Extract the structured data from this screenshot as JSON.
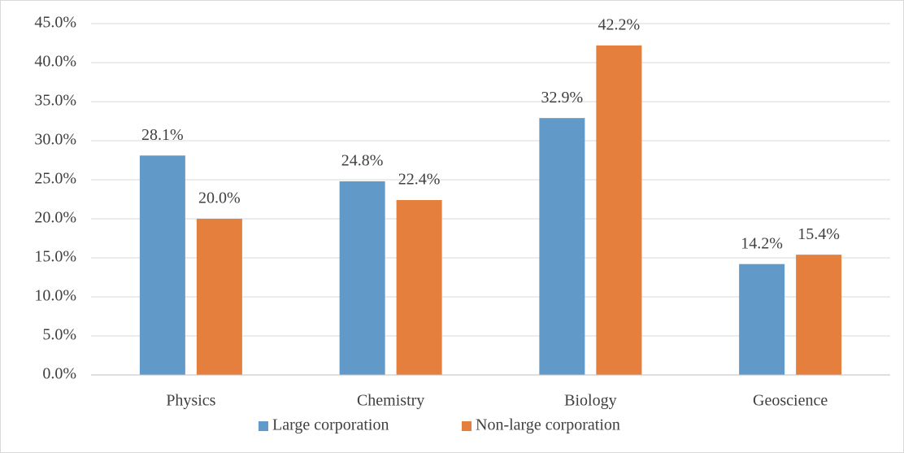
{
  "chart_data": {
    "type": "bar",
    "categories": [
      "Physics",
      "Chemistry",
      "Biology",
      "Geoscience"
    ],
    "series": [
      {
        "name": "Large corporation",
        "color": "#6199c9",
        "values": [
          28.1,
          24.8,
          32.9,
          14.2
        ],
        "value_labels": [
          "28.1%",
          "24.8%",
          "32.9%",
          "14.2%"
        ]
      },
      {
        "name": "Non-large corporation",
        "color": "#e47f3e",
        "values": [
          20.0,
          22.4,
          42.2,
          15.4
        ],
        "value_labels": [
          "20.0%",
          "22.4%",
          "42.2%",
          "15.4%"
        ]
      }
    ],
    "ylim": [
      0,
      45
    ],
    "yticks": [
      {
        "value": 0,
        "label": "0.0%"
      },
      {
        "value": 5,
        "label": "5.0%"
      },
      {
        "value": 10,
        "label": "10.0%"
      },
      {
        "value": 15,
        "label": "15.0%"
      },
      {
        "value": 20,
        "label": "20.0%"
      },
      {
        "value": 25,
        "label": "25.0%"
      },
      {
        "value": 30,
        "label": "30.0%"
      },
      {
        "value": 35,
        "label": "35.0%"
      },
      {
        "value": 40,
        "label": "40.0%"
      },
      {
        "value": 45,
        "label": "45.0%"
      }
    ],
    "grid": true,
    "legend": "bottom"
  }
}
